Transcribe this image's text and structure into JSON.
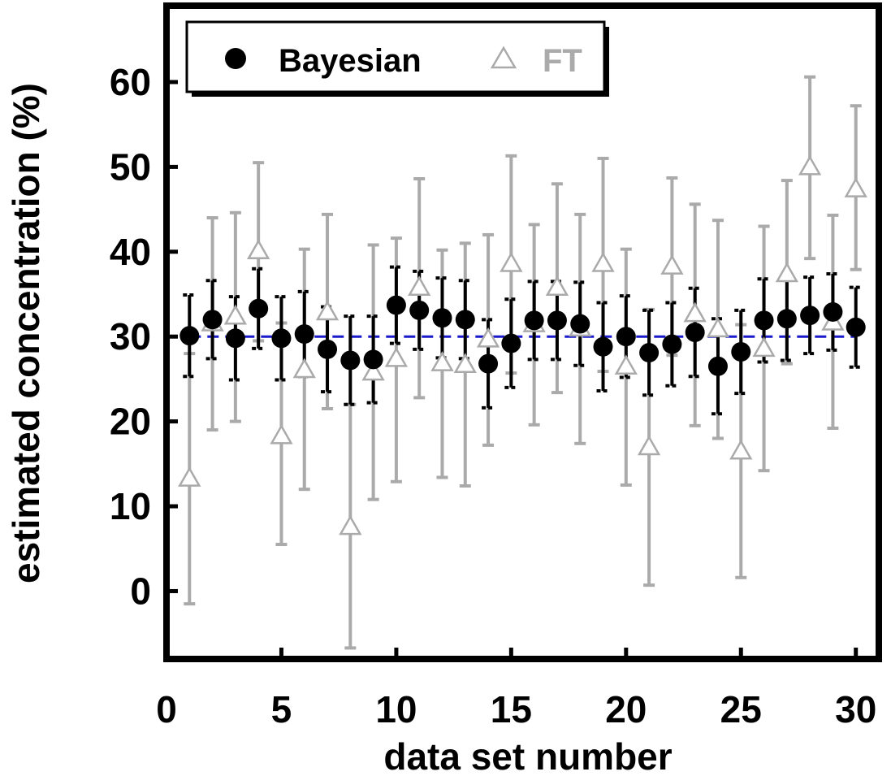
{
  "chart_data": {
    "type": "scatter",
    "xlabel": "data set number",
    "ylabel": "estimated concentration (%)",
    "xlim": [
      0,
      31
    ],
    "ylim": [
      -8,
      69
    ],
    "xticks": [
      0,
      5,
      10,
      15,
      20,
      25,
      30
    ],
    "yticks": [
      0,
      10,
      20,
      30,
      40,
      50,
      60
    ],
    "reference_line": {
      "y": 30,
      "style": "dashed",
      "color": "#1a1acc"
    },
    "legend": {
      "placement": "top-left",
      "entries": [
        "Bayesian",
        "FT"
      ]
    },
    "series": [
      {
        "name": "Bayesian",
        "marker": "filled-circle",
        "color": "#000000",
        "x": [
          1,
          2,
          3,
          4,
          5,
          6,
          7,
          8,
          9,
          10,
          11,
          12,
          13,
          14,
          15,
          16,
          17,
          18,
          19,
          20,
          21,
          22,
          23,
          24,
          25,
          26,
          27,
          28,
          29,
          30
        ],
        "y": [
          30.1,
          32.0,
          29.8,
          33.3,
          29.8,
          30.3,
          28.5,
          27.2,
          27.3,
          33.7,
          33.1,
          32.2,
          32.0,
          26.8,
          29.2,
          31.9,
          31.9,
          31.5,
          28.8,
          30.0,
          28.1,
          29.1,
          30.5,
          26.5,
          28.2,
          31.9,
          32.1,
          32.5,
          32.9,
          31.1
        ],
        "err": [
          4.8,
          4.6,
          4.9,
          4.7,
          4.9,
          5.0,
          5.0,
          5.2,
          5.1,
          4.5,
          4.6,
          4.7,
          4.6,
          5.2,
          5.2,
          4.6,
          4.6,
          4.9,
          5.2,
          4.8,
          5.0,
          4.9,
          5.2,
          5.6,
          4.9,
          4.9,
          4.9,
          4.5,
          4.5,
          4.7
        ]
      },
      {
        "name": "FT",
        "marker": "open-triangle",
        "color": "#aaaaaa",
        "x": [
          1,
          2,
          3,
          4,
          5,
          6,
          7,
          8,
          9,
          10,
          11,
          12,
          13,
          14,
          15,
          16,
          17,
          18,
          19,
          20,
          21,
          22,
          23,
          24,
          25,
          26,
          27,
          28,
          29,
          30
        ],
        "y": [
          13.2,
          31.5,
          32.3,
          40.0,
          18.2,
          26.0,
          32.8,
          7.5,
          25.7,
          27.3,
          35.7,
          26.8,
          26.6,
          29.6,
          38.5,
          31.4,
          35.7,
          30.9,
          38.5,
          26.4,
          16.9,
          38.2,
          32.6,
          30.8,
          16.4,
          28.5,
          37.3,
          49.9,
          31.6,
          47.3
        ]
      }
    ],
    "ft_err_low": [
      -1.5,
      19.0,
      20.0,
      29.5,
      5.5,
      12.0,
      21.5,
      -6.7,
      10.8,
      12.9,
      22.8,
      13.4,
      12.4,
      17.2,
      25.7,
      19.6,
      23.4,
      17.4,
      25.9,
      12.5,
      0.7,
      27.8,
      19.5,
      18.0,
      1.6,
      14.2,
      26.8,
      39.2,
      19.2,
      37.9
    ],
    "ft_err_high": [
      28.0,
      44.0,
      44.6,
      50.5,
      31.6,
      40.3,
      44.4,
      22.0,
      40.8,
      41.6,
      48.6,
      40.2,
      41.0,
      42.0,
      51.3,
      43.2,
      48.0,
      44.4,
      51.0,
      40.3,
      33.2,
      48.7,
      45.6,
      43.7,
      31.4,
      43.0,
      48.4,
      60.6,
      44.3,
      57.2
    ]
  }
}
